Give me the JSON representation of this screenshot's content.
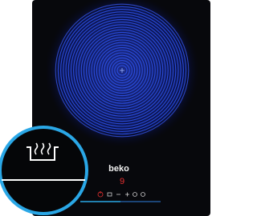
{
  "product": {
    "brand": "beko",
    "display_level": "9"
  }
}
